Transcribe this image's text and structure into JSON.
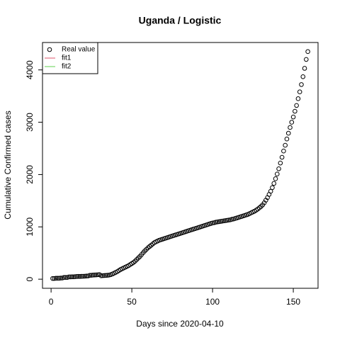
{
  "chart_data": {
    "type": "scatter",
    "title": "Uganda / Logistic",
    "xlabel": "Days since 2020-04-10",
    "ylabel": "Cumulative Confirmed cases",
    "x": [
      1,
      2,
      3,
      4,
      5,
      6,
      7,
      8,
      9,
      10,
      11,
      12,
      13,
      14,
      15,
      16,
      17,
      18,
      19,
      20,
      21,
      22,
      23,
      24,
      25,
      26,
      27,
      28,
      29,
      30,
      31,
      32,
      33,
      34,
      35,
      36,
      37,
      38,
      39,
      40,
      41,
      42,
      43,
      44,
      45,
      46,
      47,
      48,
      49,
      50,
      51,
      52,
      53,
      54,
      55,
      56,
      57,
      58,
      59,
      60,
      61,
      62,
      63,
      64,
      65,
      66,
      67,
      68,
      69,
      70,
      71,
      72,
      73,
      74,
      75,
      76,
      77,
      78,
      79,
      80,
      81,
      82,
      83,
      84,
      85,
      86,
      87,
      88,
      89,
      90,
      91,
      92,
      93,
      94,
      95,
      96,
      97,
      98,
      99,
      100,
      101,
      102,
      103,
      104,
      105,
      106,
      107,
      108,
      109,
      110,
      111,
      112,
      113,
      114,
      115,
      116,
      117,
      118,
      119,
      120,
      121,
      122,
      123,
      124,
      125,
      126,
      127,
      128,
      129,
      130,
      131,
      132,
      133,
      134,
      135,
      136,
      137,
      138,
      139,
      140,
      141,
      142,
      143,
      144,
      145,
      146,
      147,
      148,
      149,
      150,
      151,
      152,
      153,
      154,
      155,
      156,
      157,
      158,
      159
    ],
    "series": [
      {
        "name": "Real value",
        "color": "#000000",
        "values": [
          14,
          14,
          18,
          18,
          18,
          21,
          23,
          33,
          33,
          33,
          44,
          44,
          45,
          45,
          48,
          52,
          53,
          53,
          55,
          56,
          58,
          61,
          63,
          74,
          75,
          79,
          81,
          83,
          85,
          88,
          65,
          68,
          70,
          72,
          75,
          80,
          88,
          100,
          115,
          130,
          145,
          165,
          185,
          200,
          215,
          230,
          245,
          260,
          280,
          300,
          320,
          345,
          375,
          405,
          435,
          470,
          505,
          540,
          570,
          600,
          625,
          650,
          675,
          700,
          715,
          730,
          745,
          755,
          765,
          775,
          785,
          795,
          805,
          815,
          825,
          835,
          845,
          855,
          865,
          875,
          885,
          895,
          905,
          915,
          925,
          935,
          945,
          955,
          965,
          975,
          985,
          995,
          1005,
          1015,
          1025,
          1035,
          1045,
          1055,
          1065,
          1075,
          1080,
          1090,
          1095,
          1100,
          1105,
          1110,
          1115,
          1120,
          1125,
          1130,
          1135,
          1145,
          1150,
          1160,
          1170,
          1180,
          1190,
          1200,
          1210,
          1220,
          1230,
          1240,
          1255,
          1270,
          1285,
          1300,
          1320,
          1340,
          1365,
          1390,
          1420,
          1460,
          1510,
          1560,
          1620,
          1680,
          1750,
          1830,
          1920,
          2010,
          2110,
          2220,
          2330,
          2450,
          2560,
          2680,
          2790,
          2900,
          3000,
          3100,
          3210,
          3320,
          3450,
          3580,
          3720,
          3870,
          4030,
          4200,
          4350
        ]
      },
      {
        "name": "fit1",
        "color": "#df536b",
        "values": []
      },
      {
        "name": "fit2",
        "color": "#61d04f",
        "values": []
      }
    ],
    "xlim": [
      -5.32,
      165.32
    ],
    "xticks": [
      0,
      50,
      100,
      150
    ],
    "ylim": [
      -174,
      4524
    ],
    "yticks": [
      0,
      1000,
      2000,
      3000,
      4000
    ],
    "legend": "topleft"
  }
}
